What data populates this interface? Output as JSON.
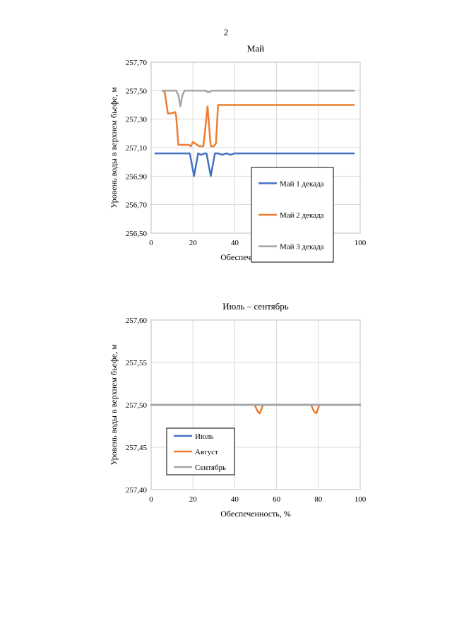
{
  "page_number": "2",
  "colors": {
    "blue": "#4472C4",
    "orange": "#ED7D31",
    "gray": "#A5A5A5"
  },
  "chart_data": [
    {
      "type": "line",
      "title": "Май",
      "xlabel": "Обеспеченность, %",
      "ylabel": "Уровень воды в верхнем бьефе, м",
      "xlim": [
        0,
        100
      ],
      "ylim": [
        256.5,
        257.7
      ],
      "x_ticks": [
        0,
        20,
        40,
        60,
        80,
        100
      ],
      "x_tick_labels": [
        "0",
        "20",
        "40",
        "60",
        "80",
        "100"
      ],
      "y_ticks": [
        256.5,
        256.7,
        256.9,
        257.1,
        257.3,
        257.5,
        257.7
      ],
      "y_tick_labels": [
        "256,50",
        "256,70",
        "256,90",
        "257,10",
        "257,30",
        "257,50",
        "257,70"
      ],
      "grid": true,
      "legend_position": "bottom-right",
      "series": [
        {
          "name": "Май 1 декада",
          "color": "#4472C4",
          "x": [
            2,
            17,
            18.5,
            20.5,
            22.5,
            24,
            25.5,
            26.5,
            28.5,
            30.5,
            32,
            34,
            36,
            38,
            40,
            97
          ],
          "y": [
            257.06,
            257.06,
            257.06,
            256.9,
            257.06,
            257.05,
            257.06,
            257.06,
            256.9,
            257.06,
            257.06,
            257.05,
            257.06,
            257.05,
            257.06,
            257.06
          ]
        },
        {
          "name": "Май 2 декада",
          "color": "#ED7D31",
          "x": [
            5.5,
            6.5,
            8,
            9.5,
            11.5,
            12,
            13,
            14,
            16,
            18,
            19,
            20,
            21,
            23,
            25,
            26,
            27,
            28,
            28.5,
            30,
            31,
            32,
            33,
            35,
            40,
            97
          ],
          "y": [
            257.5,
            257.49,
            257.34,
            257.34,
            257.35,
            257.32,
            257.12,
            257.12,
            257.12,
            257.12,
            257.11,
            257.14,
            257.13,
            257.11,
            257.11,
            257.25,
            257.39,
            257.2,
            257.11,
            257.11,
            257.13,
            257.4,
            257.4,
            257.4,
            257.4,
            257.4
          ]
        },
        {
          "name": "Май 3 декада",
          "color": "#A5A5A5",
          "x": [
            5.5,
            12,
            13,
            14,
            15,
            16,
            26,
            27,
            28,
            29,
            97
          ],
          "y": [
            257.5,
            257.5,
            257.47,
            257.39,
            257.47,
            257.5,
            257.5,
            257.49,
            257.49,
            257.5,
            257.5
          ]
        }
      ]
    },
    {
      "type": "line",
      "title": "Июль – сентябрь",
      "xlabel": "Обеспеченность, %",
      "ylabel": "Уровень воды в верхнем бьефе, м",
      "xlim": [
        0,
        100
      ],
      "ylim": [
        257.4,
        257.6
      ],
      "x_ticks": [
        0,
        20,
        40,
        60,
        80,
        100
      ],
      "x_tick_labels": [
        "0",
        "20",
        "40",
        "60",
        "80",
        "100"
      ],
      "y_ticks": [
        257.4,
        257.45,
        257.5,
        257.55,
        257.6
      ],
      "y_tick_labels": [
        "257,40",
        "257,45",
        "257,50",
        "257,55",
        "257,60"
      ],
      "grid": true,
      "legend_position": "bottom-left",
      "series": [
        {
          "name": "Июль",
          "color": "#4472C4",
          "x": [
            0,
            100
          ],
          "y": [
            257.5,
            257.5
          ]
        },
        {
          "name": "Август",
          "color": "#ED7D31",
          "x": [
            49.5,
            51,
            52,
            53.5,
            76.5,
            78,
            79,
            80.5
          ],
          "y": [
            257.5,
            257.492,
            257.49,
            257.5,
            257.5,
            257.492,
            257.49,
            257.5
          ],
          "segments": [
            [
              0,
              3
            ],
            [
              4,
              7
            ]
          ]
        },
        {
          "name": "Сентябрь",
          "color": "#A5A5A5",
          "x": [
            0,
            100
          ],
          "y": [
            257.5,
            257.5
          ]
        }
      ]
    }
  ]
}
